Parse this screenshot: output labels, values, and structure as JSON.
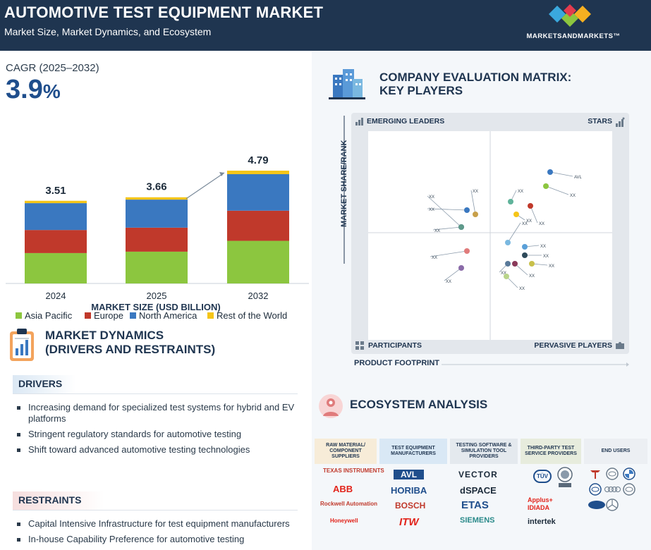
{
  "header": {
    "title": "AUTOMOTIVE TEST EQUIPMENT MARKET",
    "subtitle": "Market Size, Market Dynamics, and Ecosystem",
    "brand": "MARKETSANDMARKETS™",
    "brand_colors": [
      "#e23b4e",
      "#f6b021",
      "#3aa8dd",
      "#8cc63f"
    ]
  },
  "cagr": {
    "label": "CAGR (2025–2032)",
    "value": "3.9",
    "unit": "%"
  },
  "chart_data": {
    "type": "bar",
    "stacked": true,
    "categories": [
      "2024",
      "2025",
      "2032"
    ],
    "totals": [
      "3.51",
      "3.66",
      "4.79"
    ],
    "series": [
      {
        "name": "Asia Pacific",
        "color": "#8cc63f",
        "values": [
          1.29,
          1.35,
          1.81
        ]
      },
      {
        "name": "Europe",
        "color": "#c0392b",
        "values": [
          0.98,
          1.02,
          1.28
        ]
      },
      {
        "name": "North America",
        "color": "#3a78c0",
        "values": [
          1.14,
          1.19,
          1.55
        ]
      },
      {
        "name": "Rest of the World",
        "color": "#f5c518",
        "values": [
          0.1,
          0.1,
          0.15
        ]
      }
    ],
    "caption": "MARKET SIZE (USD BILLION)"
  },
  "dynamics": {
    "title_line1": "MARKET DYNAMICS",
    "title_line2": "(DRIVERS AND RESTRAINTS)",
    "drivers_label": "DRIVERS",
    "drivers": [
      "Increasing demand for specialized test systems for hybrid and EV platforms",
      "Stringent regulatory standards for  automotive testing",
      "Shift toward advanced automotive testing technologies"
    ],
    "restraints_label": "RESTRAINTS",
    "restraints": [
      "Capital Intensive Infrastructure for test equipment manufacturers",
      "In-house Capability Preference for automotive testing"
    ]
  },
  "matrix": {
    "title_line1": "COMPANY EVALUATION MATRIX:",
    "title_line2": "KEY PLAYERS",
    "quadrants": {
      "top_left": "EMERGING LEADERS",
      "top_right": "STARS",
      "bottom_left": "PARTICIPANTS",
      "bottom_right": "PERVASIVE PLAYERS"
    },
    "y_axis": "MARKET SHARE/RANK",
    "x_axis": "PRODUCT FOOTPRINT",
    "points": [
      {
        "label": "AVL",
        "color": "#3a78c0"
      },
      {
        "label": "XX",
        "color": "#8cc63f"
      },
      {
        "label": "XX",
        "color": "#5fb39a"
      },
      {
        "label": "XX",
        "color": "#f5c518"
      },
      {
        "label": "XX",
        "color": "#c0392b"
      },
      {
        "label": "XX",
        "color": "#3a78c0"
      },
      {
        "label": "XX",
        "color": "#c8a04a"
      },
      {
        "label": "XX",
        "color": "#2e5f8a"
      },
      {
        "label": "XX",
        "color": "#5f9a8a"
      },
      {
        "label": "XX",
        "color": "#e07b7b"
      },
      {
        "label": "XX",
        "color": "#8a6aa8"
      },
      {
        "label": "XX",
        "color": "#5aa0d8"
      },
      {
        "label": "XX",
        "color": "#7ab8e0"
      },
      {
        "label": "XX",
        "color": "#2e4a5a"
      },
      {
        "label": "XX",
        "color": "#8a3a5a"
      },
      {
        "label": "XX",
        "color": "#c8c04a"
      },
      {
        "label": "XX",
        "color": "#5a7a9a"
      },
      {
        "label": "XX",
        "color": "#b8d48a"
      }
    ]
  },
  "ecosystem": {
    "title": "ECOSYSTEM ANALYSIS",
    "columns": [
      {
        "head": "RAW MATERIAL/ COMPONENT SUPPLIERS",
        "bg": "#f7ecd8",
        "logos": [
          "TEXAS INSTRUMENTS",
          "ABB",
          "Rockwell Automation",
          "Honeywell"
        ]
      },
      {
        "head": "TEST EQUIPMENT MANUFACTURERS",
        "bg": "#d9e8f5",
        "logos": [
          "AVL",
          "HORIBA",
          "BOSCH",
          "ITW"
        ]
      },
      {
        "head": "TESTING SOFTWARE & SIMULATION TOOL PROVIDERS",
        "bg": "#e4e9ee",
        "logos": [
          "VECTOR",
          "dSPACE",
          "ETAS",
          "SIEMENS"
        ]
      },
      {
        "head": "THIRD-PARTY TEST SERVICE PROVIDERS",
        "bg": "#e7ecdd",
        "logos": [
          "TÜV",
          "Applus+ IDIADA",
          "intertek"
        ]
      },
      {
        "head": "END USERS",
        "bg": "#eceff3",
        "logos": [
          "TESLA",
          "TOYOTA",
          "BMW",
          "VW",
          "AUDI",
          "HYUNDAI",
          "FORD",
          "MERCEDES"
        ]
      }
    ]
  }
}
